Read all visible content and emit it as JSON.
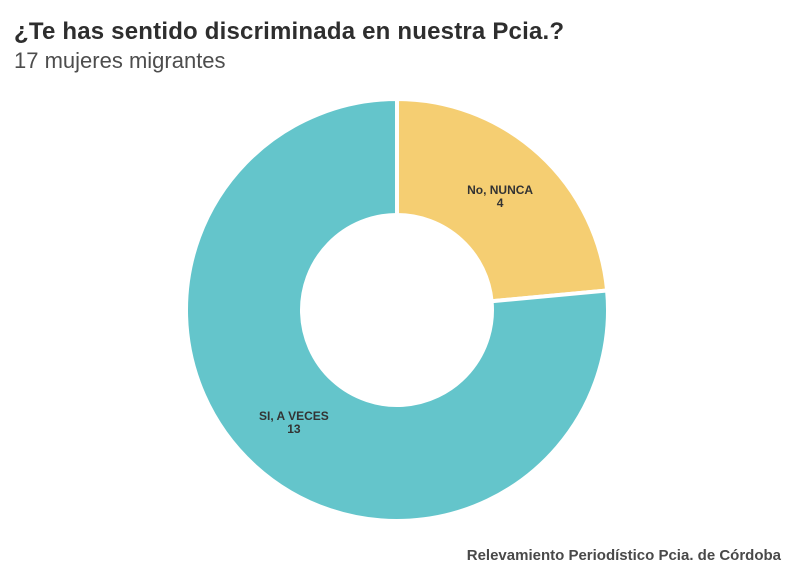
{
  "header": {
    "title": "¿Te has sentido discriminada en nuestra Pcia.?",
    "subtitle": "17 mujeres migrantes"
  },
  "footer": {
    "source": "Relevamiento Periodístico Pcia. de Córdoba"
  },
  "chart_data": {
    "type": "pie",
    "variant": "donut",
    "title": "¿Te has sentido discriminada en nuestra Pcia.?",
    "subtitle": "17 mujeres migrantes",
    "categories": [
      "No, NUNCA",
      "SI, A VECES"
    ],
    "values": [
      4,
      13
    ],
    "total": 17,
    "colors": [
      "#F5CE72",
      "#64C5CB"
    ],
    "start_angle_deg": 0,
    "direction": "clockwise",
    "inner_radius_ratio": 0.45,
    "slice_gap_color": "#ffffff",
    "label_color": "#333333",
    "legend": "none",
    "source_note": "Relevamiento Periodístico Pcia. de Córdoba"
  }
}
